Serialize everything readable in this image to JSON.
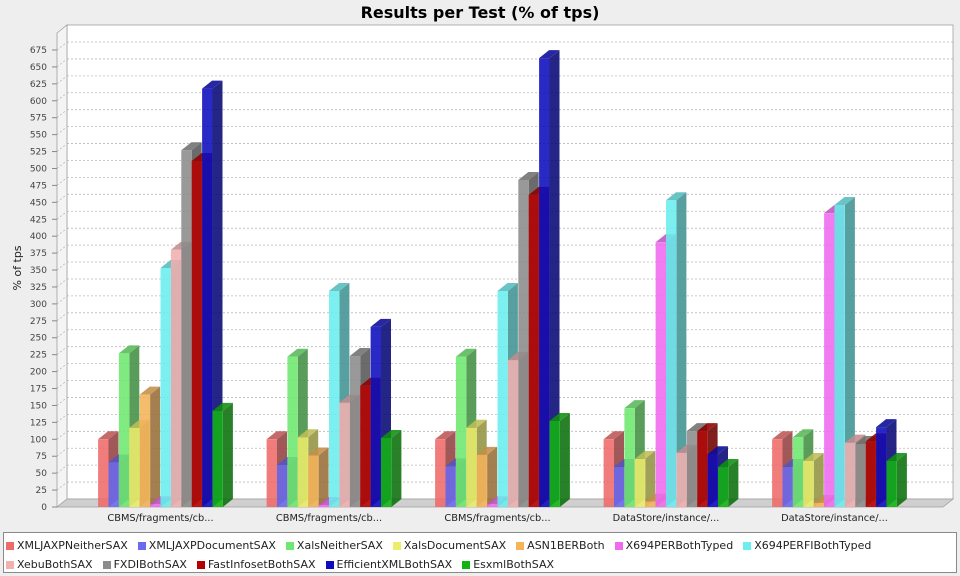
{
  "chart_data": {
    "type": "bar",
    "title": "Results per Test (% of tps)",
    "ylabel": "% of tps",
    "ylim": [
      0,
      675
    ],
    "yticks": [
      0,
      25,
      50,
      75,
      100,
      125,
      150,
      175,
      200,
      225,
      250,
      275,
      300,
      325,
      350,
      375,
      400,
      425,
      450,
      475,
      500,
      525,
      550,
      575,
      600,
      625,
      650,
      675
    ],
    "grid": true,
    "legend": "bottom",
    "categories": [
      "CBMS/fragments/cb...",
      "CBMS/fragments/cb...",
      "CBMS/fragments/cb...",
      "DataStore/instance/...",
      "DataStore/instance/..."
    ],
    "series": [
      {
        "name": "XMLJAXPNeitherSAX",
        "color": "#ef6a6a",
        "values": [
          100,
          100,
          100,
          100,
          100
        ]
      },
      {
        "name": "XMLJAXPDocumentSAX",
        "color": "#6a6aef",
        "values": [
          66,
          62,
          60,
          59,
          59
        ]
      },
      {
        "name": "XalsNeitherSAX",
        "color": "#6ee86e",
        "values": [
          227,
          222,
          222,
          146,
          103
        ]
      },
      {
        "name": "XalsDocumentSAX",
        "color": "#eded6a",
        "values": [
          117,
          103,
          117,
          71,
          68
        ]
      },
      {
        "name": "ASN1BERBoth",
        "color": "#f5b35a",
        "values": [
          166,
          76,
          77,
          8,
          6
        ]
      },
      {
        "name": "X694PERBothTyped",
        "color": "#f06af0",
        "values": [
          4,
          3,
          4,
          391,
          434
        ]
      },
      {
        "name": "X694PERFIBothTyped",
        "color": "#6aeeee",
        "values": [
          353,
          319,
          319,
          453,
          446
        ]
      },
      {
        "name": "XebuBothSAX",
        "color": "#f2b0b0",
        "values": [
          380,
          154,
          217,
          80,
          95
        ]
      },
      {
        "name": "FXDIBothSAX",
        "color": "#8c8c8c",
        "values": [
          527,
          223,
          483,
          112,
          93
        ]
      },
      {
        "name": "FastInfosetBothSAX",
        "color": "#b40000",
        "values": [
          511,
          179,
          461,
          112,
          97
        ]
      },
      {
        "name": "EfficientXMLBothSAX",
        "color": "#0c0cbe",
        "values": [
          618,
          266,
          663,
          78,
          118
        ]
      },
      {
        "name": "EsxmlBothSAX",
        "color": "#12b412",
        "values": [
          142,
          102,
          127,
          59,
          68
        ]
      }
    ]
  }
}
